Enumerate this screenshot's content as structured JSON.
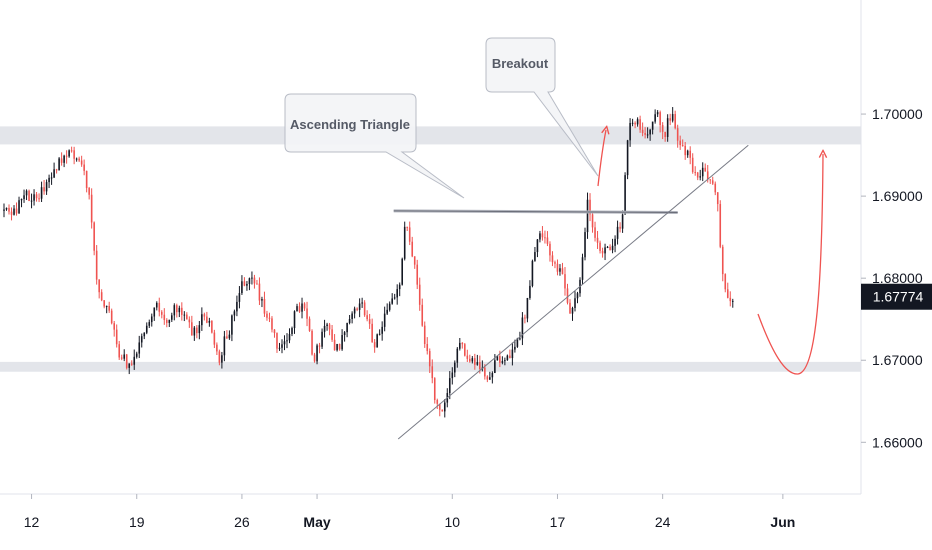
{
  "chart_data": {
    "type": "candlestick",
    "y_axis": {
      "ticks": [
        "1.70000",
        "1.69000",
        "1.68000",
        "1.67000",
        "1.66000"
      ],
      "tick_values": [
        1.7,
        1.69,
        1.68,
        1.67,
        1.66
      ],
      "ylim": [
        1.6537,
        1.7139
      ]
    },
    "x_axis": {
      "ticks": [
        {
          "label": "12",
          "day": 12,
          "bold": false
        },
        {
          "label": "19",
          "day": 19,
          "bold": false
        },
        {
          "label": "26",
          "day": 26,
          "bold": false
        },
        {
          "label": "May",
          "day": 31,
          "bold": true
        },
        {
          "label": "10",
          "day": 40,
          "bold": false
        },
        {
          "label": "17",
          "day": 47,
          "bold": false
        },
        {
          "label": "24",
          "day": 54,
          "bold": false
        },
        {
          "label": "Jun",
          "day": 62,
          "bold": true
        }
      ],
      "xlim": [
        9.9,
        67.2
      ]
    },
    "current_price": {
      "label": "1.67774",
      "value": 1.67774
    },
    "zones": [
      {
        "y_top": 1.6985,
        "y_bottom": 1.6963,
        "color": "#e3e5ea"
      },
      {
        "y_top": 1.6698,
        "y_bottom": 1.6686,
        "color": "#e3e5ea"
      }
    ],
    "annotations": [
      {
        "text": "Ascending Triangle"
      },
      {
        "text": "Breakout"
      }
    ],
    "lines": {
      "resistance": {
        "from": [
          36.1,
          1.6882
        ],
        "to": [
          55.0,
          1.688
        ]
      },
      "trendline": {
        "from": [
          36.4,
          1.6604
        ],
        "to": [
          59.7,
          1.6962
        ]
      }
    },
    "colors": {
      "up": "#131722",
      "down": "#ef5350",
      "price_label_bg": "#131722",
      "zone": "#e3e5ea"
    },
    "anchors": [
      [
        10.0,
        1.6882
      ],
      [
        10.7,
        1.6876
      ],
      [
        11.5,
        1.6905
      ],
      [
        12.4,
        1.6895
      ],
      [
        13.4,
        1.693
      ],
      [
        14.5,
        1.6958
      ],
      [
        15.3,
        1.694
      ],
      [
        15.8,
        1.6905
      ],
      [
        16.2,
        1.682
      ],
      [
        16.6,
        1.6775
      ],
      [
        17.2,
        1.676
      ],
      [
        17.8,
        1.671
      ],
      [
        18.5,
        1.6692
      ],
      [
        19.4,
        1.6735
      ],
      [
        20.2,
        1.677
      ],
      [
        21.0,
        1.6745
      ],
      [
        21.8,
        1.677
      ],
      [
        22.7,
        1.673
      ],
      [
        23.6,
        1.6758
      ],
      [
        24.4,
        1.67
      ],
      [
        25.2,
        1.674
      ],
      [
        26.0,
        1.6792
      ],
      [
        26.8,
        1.68
      ],
      [
        27.6,
        1.6755
      ],
      [
        28.5,
        1.671
      ],
      [
        29.3,
        1.6745
      ],
      [
        30.1,
        1.6778
      ],
      [
        30.8,
        1.67
      ],
      [
        31.6,
        1.6742
      ],
      [
        32.4,
        1.671
      ],
      [
        33.2,
        1.676
      ],
      [
        34.0,
        1.6765
      ],
      [
        34.8,
        1.672
      ],
      [
        35.6,
        1.6758
      ],
      [
        36.4,
        1.6782
      ],
      [
        36.9,
        1.6868
      ],
      [
        37.5,
        1.681
      ],
      [
        38.0,
        1.674
      ],
      [
        38.5,
        1.669
      ],
      [
        39.0,
        1.664
      ],
      [
        39.4,
        1.6632
      ],
      [
        39.9,
        1.668
      ],
      [
        40.5,
        1.6725
      ],
      [
        41.1,
        1.6695
      ],
      [
        41.8,
        1.6698
      ],
      [
        42.4,
        1.6675
      ],
      [
        43.0,
        1.67
      ],
      [
        43.7,
        1.6705
      ],
      [
        44.3,
        1.672
      ],
      [
        45.0,
        1.677
      ],
      [
        45.6,
        1.6852
      ],
      [
        46.3,
        1.684
      ],
      [
        46.8,
        1.682
      ],
      [
        47.3,
        1.68
      ],
      [
        47.8,
        1.676
      ],
      [
        48.5,
        1.6795
      ],
      [
        49.0,
        1.6895
      ],
      [
        49.6,
        1.684
      ],
      [
        50.2,
        1.683
      ],
      [
        50.8,
        1.685
      ],
      [
        51.3,
        1.687
      ],
      [
        51.8,
        1.6995
      ],
      [
        52.4,
        1.699
      ],
      [
        53.0,
        1.6975
      ],
      [
        53.6,
        1.701
      ],
      [
        54.1,
        1.6975
      ],
      [
        54.6,
        1.7005
      ],
      [
        55.2,
        1.696
      ],
      [
        55.7,
        1.695
      ],
      [
        56.3,
        1.692
      ],
      [
        56.8,
        1.6935
      ],
      [
        57.3,
        1.6918
      ],
      [
        57.7,
        1.688
      ],
      [
        58.0,
        1.68
      ],
      [
        58.4,
        1.677
      ],
      [
        58.8,
        1.677
      ]
    ]
  }
}
